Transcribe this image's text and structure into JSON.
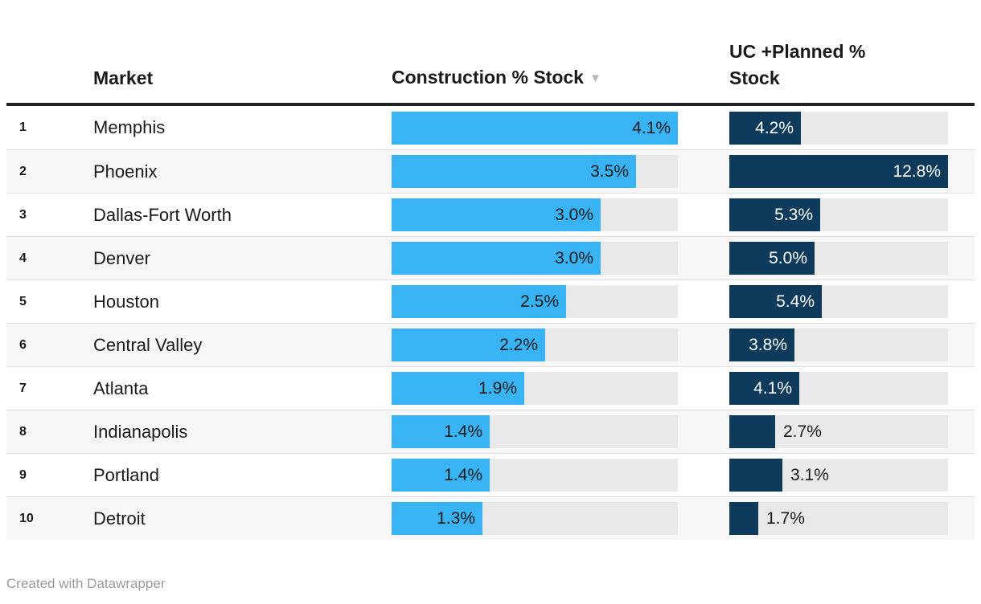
{
  "table": {
    "columns": {
      "rank_header": "",
      "market": "Market",
      "construction": "Construction % Stock",
      "sort_icon": "▼",
      "uc_planned": "UC +Planned %\nStock"
    },
    "rows": [
      {
        "rank": "1",
        "market": "Memphis",
        "construction": {
          "value": 4.1,
          "label": "4.1%"
        },
        "uc": {
          "value": 4.2,
          "label": "4.2%"
        }
      },
      {
        "rank": "2",
        "market": "Phoenix",
        "construction": {
          "value": 3.5,
          "label": "3.5%"
        },
        "uc": {
          "value": 12.8,
          "label": "12.8%"
        }
      },
      {
        "rank": "3",
        "market": "Dallas-Fort Worth",
        "construction": {
          "value": 3.0,
          "label": "3.0%"
        },
        "uc": {
          "value": 5.3,
          "label": "5.3%"
        }
      },
      {
        "rank": "4",
        "market": "Denver",
        "construction": {
          "value": 3.0,
          "label": "3.0%"
        },
        "uc": {
          "value": 5.0,
          "label": "5.0%"
        }
      },
      {
        "rank": "5",
        "market": "Houston",
        "construction": {
          "value": 2.5,
          "label": "2.5%"
        },
        "uc": {
          "value": 5.4,
          "label": "5.4%"
        }
      },
      {
        "rank": "6",
        "market": "Central Valley",
        "construction": {
          "value": 2.2,
          "label": "2.2%"
        },
        "uc": {
          "value": 3.8,
          "label": "3.8%"
        }
      },
      {
        "rank": "7",
        "market": "Atlanta",
        "construction": {
          "value": 1.9,
          "label": "1.9%"
        },
        "uc": {
          "value": 4.1,
          "label": "4.1%"
        }
      },
      {
        "rank": "8",
        "market": "Indianapolis",
        "construction": {
          "value": 1.4,
          "label": "1.4%"
        },
        "uc": {
          "value": 2.7,
          "label": "2.7%"
        }
      },
      {
        "rank": "9",
        "market": "Portland",
        "construction": {
          "value": 1.4,
          "label": "1.4%"
        },
        "uc": {
          "value": 3.1,
          "label": "3.1%"
        }
      },
      {
        "rank": "10",
        "market": "Detroit",
        "construction": {
          "value": 1.3,
          "label": "1.3%"
        },
        "uc": {
          "value": 1.7,
          "label": "1.7%"
        }
      }
    ]
  },
  "chart_data": {
    "type": "table",
    "title": "",
    "categories": [
      "Memphis",
      "Phoenix",
      "Dallas-Fort Worth",
      "Denver",
      "Houston",
      "Central Valley",
      "Atlanta",
      "Indianapolis",
      "Portland",
      "Detroit"
    ],
    "series": [
      {
        "name": "Construction % Stock",
        "values": [
          4.1,
          3.5,
          3.0,
          3.0,
          2.5,
          2.2,
          1.9,
          1.4,
          1.4,
          1.3
        ],
        "axis_max": 4.1,
        "bar_color": "#38b4f4",
        "label_inside_color": "#1a1a1a"
      },
      {
        "name": "UC +Planned % Stock",
        "values": [
          4.2,
          12.8,
          5.3,
          5.0,
          5.4,
          3.8,
          4.1,
          2.7,
          3.1,
          1.7
        ],
        "axis_max": 12.8,
        "bar_color": "#0e3a5c",
        "label_inside_color": "#ffffff"
      }
    ],
    "sorted_by": "Construction % Stock descending",
    "grid": false,
    "legend_position": "none"
  },
  "colors": {
    "construction_bar": "#38b4f4",
    "uc_bar": "#0e3a5c",
    "bar_track": "#e9e9e9",
    "row_stripe": "#f7f7f7",
    "row_divider": "#e0e0e0",
    "header_rule": "#222222",
    "label_outside": "#1a1a1a",
    "sort_icon": "#b8b8b8",
    "footer_text": "#9b9b9b"
  },
  "footer": {
    "created_with": "Created with ",
    "brand": "Datawrapper"
  }
}
